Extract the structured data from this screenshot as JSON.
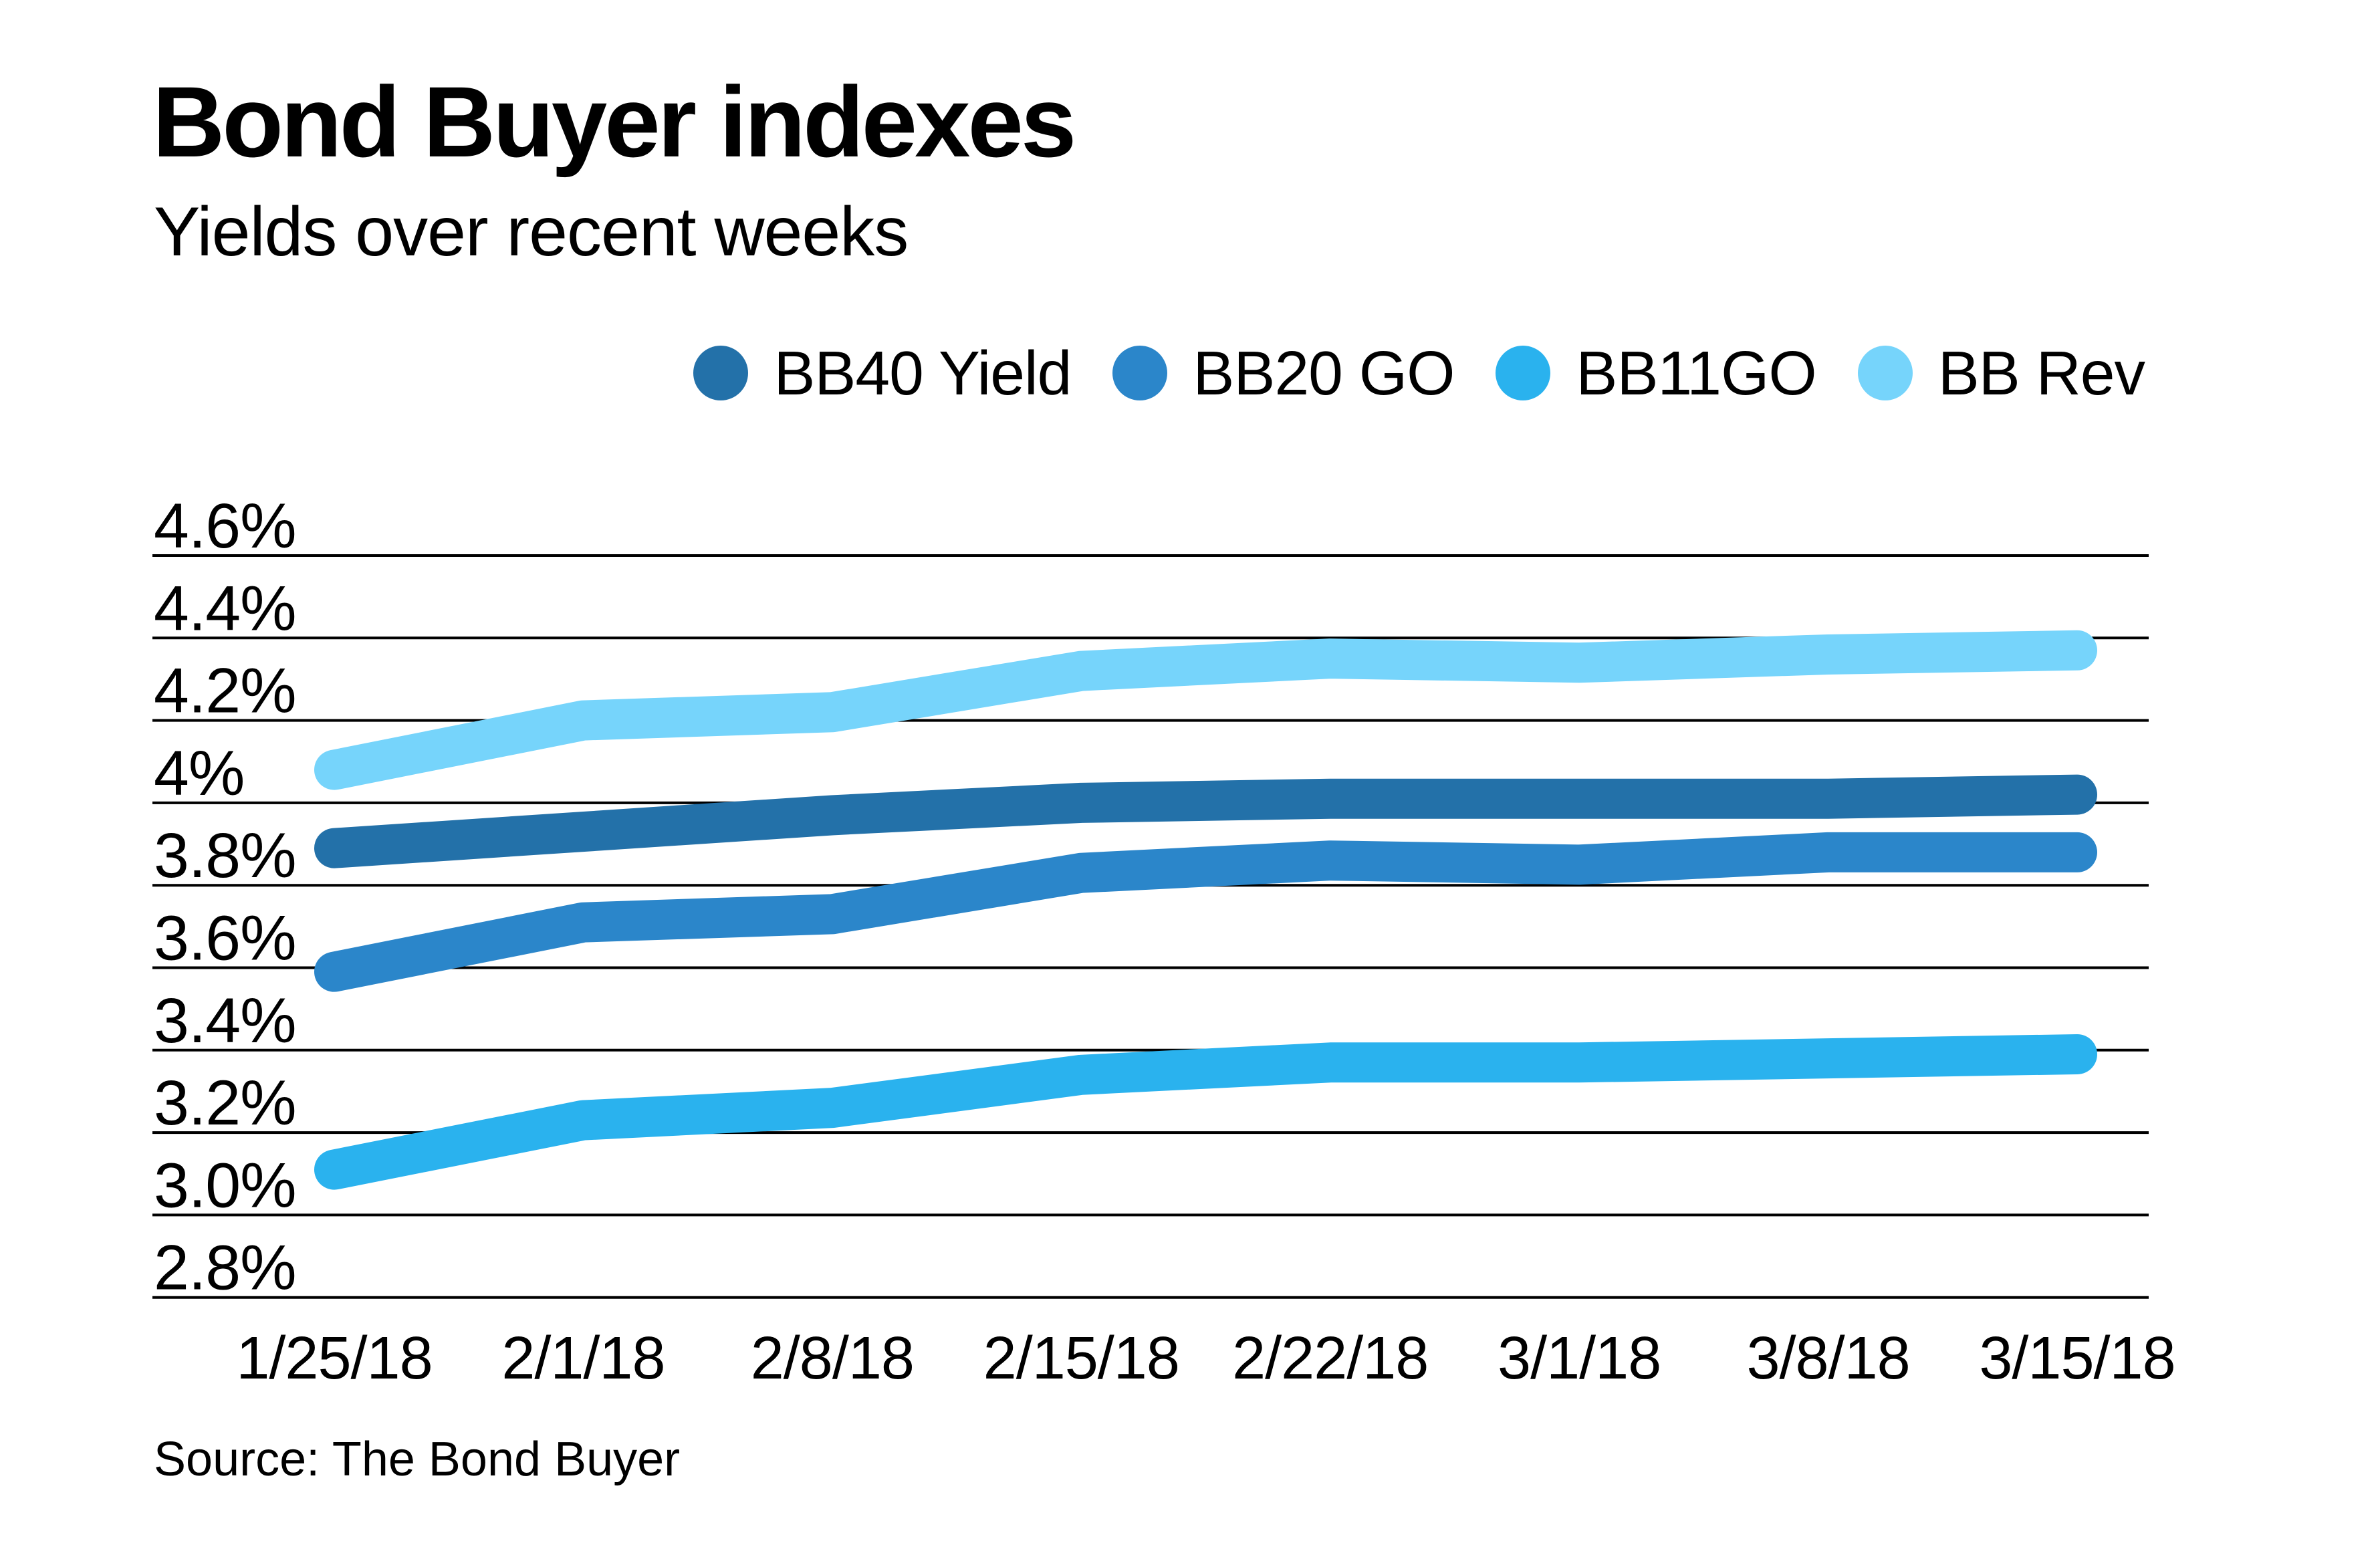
{
  "header": {
    "title": "Bond Buyer indexes",
    "subtitle": "Yields over recent weeks"
  },
  "legend": {
    "items": [
      {
        "label": "BB40 Yield"
      },
      {
        "label": "BB20 GO"
      },
      {
        "label": "BB11GO"
      },
      {
        "label": "BB Rev"
      }
    ]
  },
  "source": {
    "text": "Source: The Bond Buyer"
  },
  "chart_data": {
    "type": "line",
    "title": "Bond Buyer indexes",
    "subtitle": "Yields over recent weeks",
    "x": [
      "1/25/18",
      "2/1/18",
      "2/8/18",
      "2/15/18",
      "2/22/18",
      "3/1/18",
      "3/8/18",
      "3/15/18"
    ],
    "series": [
      {
        "name": "BB40 Yield",
        "color": "#2371a9",
        "values": [
          3.89,
          3.93,
          3.97,
          4.0,
          4.01,
          4.01,
          4.01,
          4.02
        ]
      },
      {
        "name": "BB20 GO",
        "color": "#2b86ca",
        "values": [
          3.59,
          3.71,
          3.73,
          3.83,
          3.86,
          3.85,
          3.88,
          3.88
        ]
      },
      {
        "name": "BB11GO",
        "color": "#2ab2ee",
        "values": [
          3.11,
          3.23,
          3.26,
          3.34,
          3.37,
          3.37,
          3.38,
          3.39
        ]
      },
      {
        "name": "BB Rev",
        "color": "#76d4fb",
        "values": [
          4.08,
          4.2,
          4.22,
          4.32,
          4.35,
          4.34,
          4.36,
          4.37
        ]
      }
    ],
    "y_ticks": [
      {
        "label": "4.6%",
        "value": 4.6
      },
      {
        "label": "4.4%",
        "value": 4.4
      },
      {
        "label": "4.2%",
        "value": 4.2
      },
      {
        "label": "4%",
        "value": 4.0
      },
      {
        "label": "3.8%",
        "value": 3.8
      },
      {
        "label": "3.6%",
        "value": 3.6
      },
      {
        "label": "3.4%",
        "value": 3.4
      },
      {
        "label": "3.2%",
        "value": 3.2
      },
      {
        "label": "3.0%",
        "value": 3.0
      },
      {
        "label": "2.8%",
        "value": 2.8
      }
    ],
    "ylim": [
      2.8,
      4.6
    ],
    "xlabel": "",
    "ylabel": "",
    "grid": true,
    "grid_color": "#000000",
    "legend_position": "top-right",
    "source": "Source: The Bond Buyer"
  }
}
